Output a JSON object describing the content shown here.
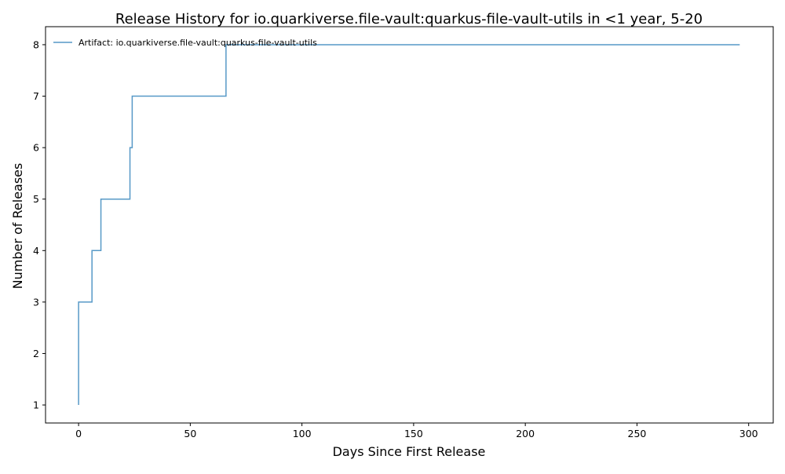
{
  "chart_data": {
    "type": "line",
    "step": "post",
    "title": "Release History for io.quarkiverse.file-vault:quarkus-file-vault-utils in <1 year, 5-20",
    "xlabel": "Days Since First Release",
    "ylabel": "Number of Releases",
    "xlim": [
      -14.8,
      311
    ],
    "ylim": [
      0.65,
      8.35
    ],
    "xticks": [
      0,
      50,
      100,
      150,
      200,
      250,
      300
    ],
    "yticks": [
      1,
      2,
      3,
      4,
      5,
      6,
      7,
      8
    ],
    "grid": false,
    "legend_position": "top-left",
    "series": [
      {
        "name": "Artifact: io.quarkiverse.file-vault:quarkus-file-vault-utils",
        "color": "#1f77b4",
        "x": [
          0,
          0,
          0,
          6,
          10,
          23,
          24,
          66,
          296
        ],
        "y": [
          1,
          2,
          3,
          4,
          5,
          6,
          7,
          8,
          8
        ]
      }
    ]
  }
}
